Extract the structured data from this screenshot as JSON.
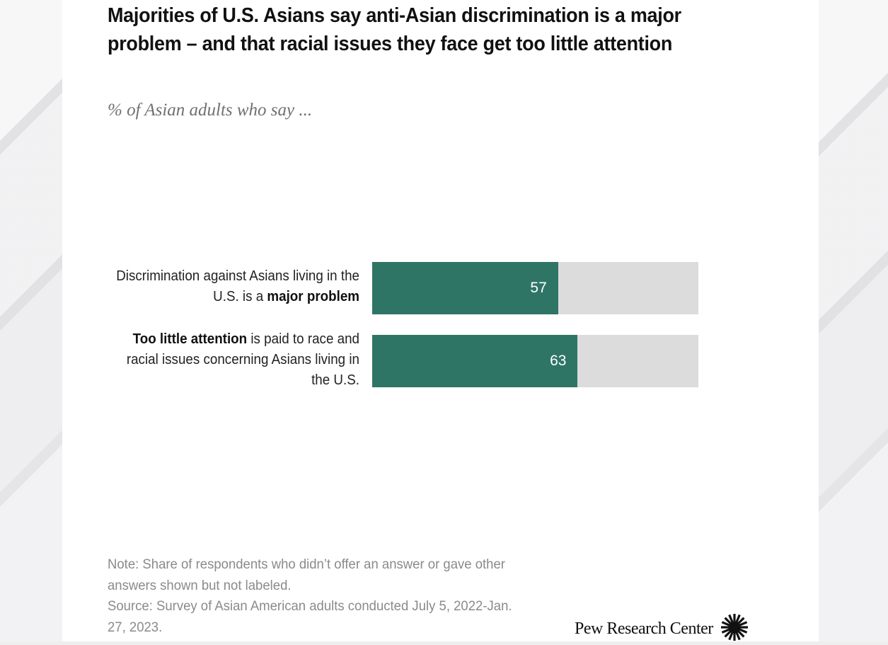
{
  "chart": {
    "title": "Majorities of U.S. Asians say anti-Asian discrimination is a major problem – and that racial issues they face get too little attention",
    "subtitle": "% of Asian adults who say ...",
    "rows": [
      {
        "label_pre": "Discrimination against Asians living in the U.S. is a ",
        "label_bold": "major problem",
        "label_post": "",
        "value": 57,
        "value_label": "57"
      },
      {
        "label_pre": "",
        "label_bold": "Too little attention",
        "label_post": " is paid to race and racial issues concerning Asians living in the U.S.",
        "value": 63,
        "value_label": "63"
      }
    ],
    "note": "Note: Share of respondents who didn’t offer an answer or gave other answers shown but not labeled.",
    "source": "Source: Survey of Asian American adults conducted July 5, 2022-Jan. 27, 2023.",
    "brand": "Pew Research Center",
    "colors": {
      "bar": "#2f7566",
      "track": "#dcdcdd"
    }
  },
  "chart_data": {
    "type": "bar",
    "orientation": "horizontal",
    "title": "Majorities of U.S. Asians say anti-Asian discrimination is a major problem – and that racial issues they face get too little attention",
    "subtitle": "% of Asian adults who say ...",
    "categories": [
      "Discrimination against Asians living in the U.S. is a major problem",
      "Too little attention is paid to race and racial issues concerning Asians living in the U.S."
    ],
    "values": [
      57,
      63
    ],
    "xlabel": "",
    "ylabel": "",
    "xlim": [
      0,
      100
    ],
    "grid": false,
    "legend": null,
    "note": "Note: Share of respondents who didn’t offer an answer or gave other answers shown but not labeled.",
    "source": "Source: Survey of Asian American adults conducted July 5, 2022-Jan. 27, 2023."
  }
}
